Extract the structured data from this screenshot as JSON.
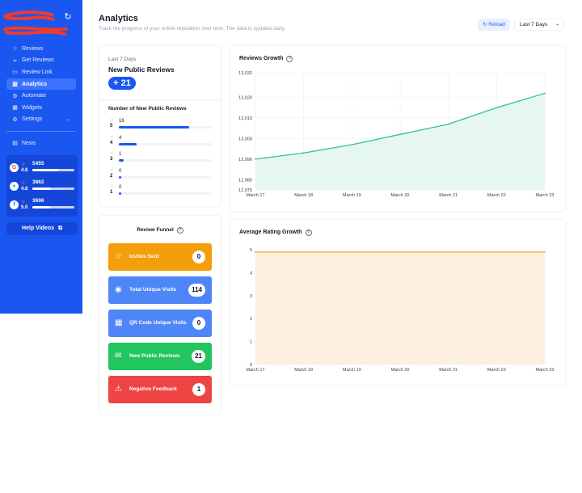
{
  "sidebar": {
    "nav": [
      {
        "label": "Reviews",
        "icon": "star-icon",
        "glyph": "☆"
      },
      {
        "label": "Get Reviews",
        "icon": "send-icon",
        "glyph": "➢"
      },
      {
        "label": "Review Link",
        "icon": "monitor-icon",
        "glyph": "▭"
      },
      {
        "label": "Analytics",
        "icon": "chart-icon",
        "glyph": "▥",
        "active": true
      },
      {
        "label": "Automate",
        "icon": "automate-icon",
        "glyph": "⚙"
      },
      {
        "label": "Widgets",
        "icon": "widgets-icon",
        "glyph": "▦"
      },
      {
        "label": "Settings",
        "icon": "settings-icon",
        "glyph": "⚙"
      }
    ],
    "news": {
      "label": "News",
      "glyph": "▤"
    },
    "platforms": [
      {
        "name": "google",
        "logo": "G",
        "logo_color": "#ea4335",
        "rating": "4.8",
        "count": "5455",
        "fill": 0.62
      },
      {
        "name": "tripadvisor",
        "logo": "●",
        "logo_color": "#34d399",
        "rating": "4.8",
        "count": "3862",
        "fill": 0.45
      },
      {
        "name": "facebook",
        "logo": "f",
        "logo_color": "#1877f2",
        "rating": "5.0",
        "count": "3696",
        "fill": 0.43
      }
    ],
    "help_label": "Help Videos",
    "help_glyph": "⧉"
  },
  "header": {
    "title": "Analytics",
    "subtitle": "Track the progress of your online reputation over time. The data is updated daily.",
    "reload_label": "Reload",
    "range_value": "Last 7 Days"
  },
  "new_reviews": {
    "period": "Last 7 Days",
    "title": "New Public Reviews",
    "badge": "+ 21",
    "dist_title": "Number of New Public Reviews",
    "rows": [
      {
        "stars": "5",
        "count": "16",
        "fill": 0.76
      },
      {
        "stars": "4",
        "count": "4",
        "fill": 0.19
      },
      {
        "stars": "3",
        "count": "1",
        "fill": 0.05
      },
      {
        "stars": "2",
        "count": "0",
        "fill": 0.03
      },
      {
        "stars": "1",
        "count": "0",
        "fill": 0.03
      }
    ]
  },
  "funnel": {
    "title": "Review Funnel",
    "items": [
      {
        "label": "Invites Sent",
        "value": "0",
        "color": "#f59e0b",
        "icon": "star-icon",
        "glyph": "☆"
      },
      {
        "label": "Total Unique Visits",
        "value": "114",
        "color": "#4f86f7",
        "icon": "eye-icon",
        "glyph": "◉"
      },
      {
        "label": "QR Code Unique Visits",
        "value": "0",
        "color": "#4f86f7",
        "icon": "qr-code-icon",
        "glyph": "▦"
      },
      {
        "label": "New Public Reviews",
        "value": "21",
        "color": "#22c55e",
        "icon": "chat-icon",
        "glyph": "✉"
      },
      {
        "label": "Negative Feedback",
        "value": "1",
        "color": "#ef4444",
        "icon": "warning-icon",
        "glyph": "⚠"
      }
    ]
  },
  "chart_data": [
    {
      "type": "area",
      "title": "Reviews Growth",
      "x": [
        "March 17",
        "March 18",
        "March 19",
        "March 20",
        "March 21",
        "March 22",
        "March 23"
      ],
      "y_ticks": [
        "13,032",
        "13,020",
        "13,010",
        "13,000",
        "12,990",
        "12,980",
        "12,975"
      ],
      "ylim": [
        12975,
        13032
      ],
      "series": [
        {
          "values": [
            12990,
            12993,
            12997,
            13002,
            13007,
            13015,
            13022
          ]
        }
      ],
      "color": "#34c38f",
      "fill": "#e6f7ef",
      "grid": true
    },
    {
      "type": "area",
      "title": "Average Rating Growth",
      "x": [
        "March 17",
        "March 18",
        "March 19",
        "March 20",
        "March 21",
        "March 22",
        "March 23"
      ],
      "y_ticks": [
        "5",
        "4",
        "3",
        "2",
        "1",
        "0"
      ],
      "ylim": [
        0,
        5
      ],
      "series": [
        {
          "values": [
            4.9,
            4.9,
            4.9,
            4.9,
            4.9,
            4.9,
            4.9
          ]
        }
      ],
      "color": "#f5a623",
      "fill": "#fdf0de",
      "grid": true
    }
  ]
}
